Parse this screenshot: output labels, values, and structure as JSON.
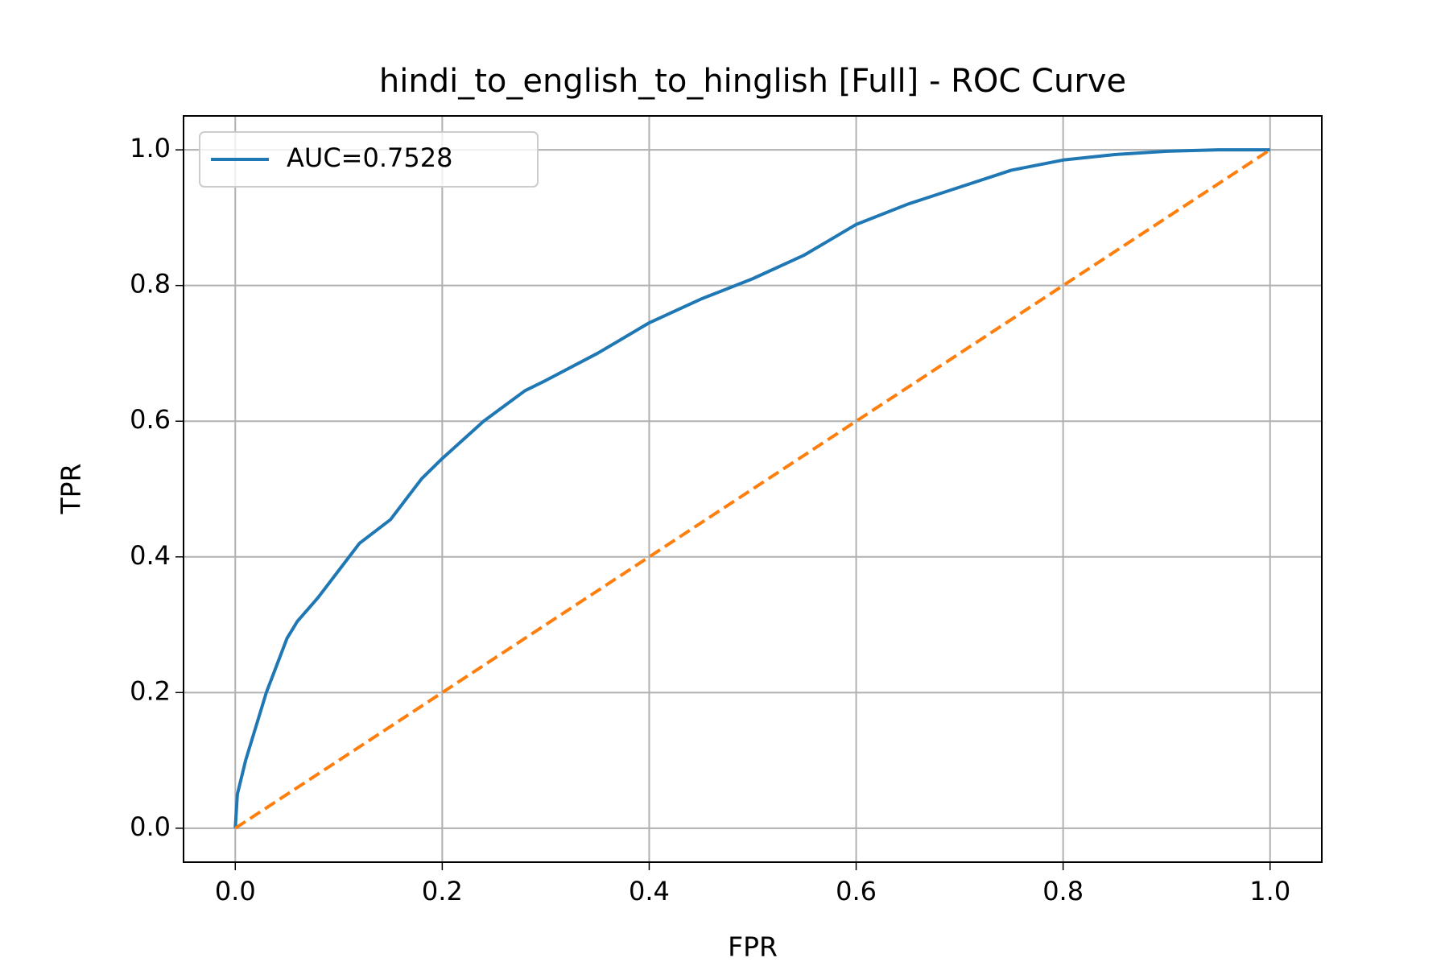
{
  "chart_data": {
    "type": "line",
    "title": "hindi_to_english_to_hinglish [Full] - ROC Curve",
    "x_label": "FPR",
    "y_label": "TPR",
    "xlim": [
      -0.05,
      1.05
    ],
    "ylim": [
      -0.05,
      1.05
    ],
    "xticks": [
      {
        "value": 0,
        "label": "0.0"
      },
      0.2,
      0.4,
      0.6,
      0.8,
      {
        "value": 1,
        "label": "1.0"
      }
    ],
    "yticks": [
      {
        "value": 0,
        "label": "0.0"
      },
      0.2,
      0.4,
      0.6,
      0.8,
      {
        "value": 1,
        "label": "1.0"
      }
    ],
    "grid": true,
    "legend": "upper left",
    "series": [
      {
        "name": "AUC=0.7528",
        "color": "#1f77b4",
        "dash": false,
        "x": [
          0,
          0.002,
          0.01,
          0.02,
          0.03,
          0.04,
          0.05,
          0.06,
          0.08,
          0.1,
          0.12,
          0.15,
          0.18,
          0.2,
          0.24,
          0.28,
          0.3,
          0.35,
          0.4,
          0.45,
          0.5,
          0.55,
          0.6,
          0.65,
          0.7,
          0.75,
          0.8,
          0.85,
          0.9,
          0.95,
          1.0
        ],
        "values": [
          0,
          0.05,
          0.1,
          0.15,
          0.2,
          0.24,
          0.28,
          0.305,
          0.34,
          0.38,
          0.42,
          0.455,
          0.515,
          0.545,
          0.6,
          0.645,
          0.66,
          0.7,
          0.745,
          0.78,
          0.81,
          0.845,
          0.89,
          0.92,
          0.945,
          0.97,
          0.985,
          0.993,
          0.998,
          1.0,
          1.0
        ]
      },
      {
        "color": "#ff7f0e",
        "dash": true,
        "x": [
          0,
          1
        ],
        "values": [
          0,
          1
        ]
      }
    ]
  }
}
